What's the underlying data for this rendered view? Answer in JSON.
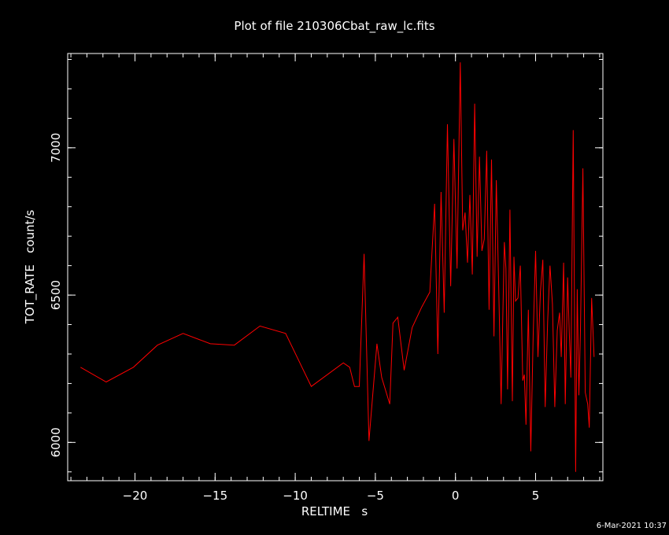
{
  "chart_data": {
    "type": "line",
    "title": "Plot of file 210306Cbat_raw_lc.fits",
    "xlabel": "RELTIME   s",
    "ylabel": "TOT_RATE   count/s",
    "xlim": [
      -24.2,
      9.2
    ],
    "ylim": [
      5870,
      7320
    ],
    "x_ticks": [
      {
        "value": -20,
        "label": "−20"
      },
      {
        "value": -15,
        "label": "−15"
      },
      {
        "value": -10,
        "label": "−10"
      },
      {
        "value": -5,
        "label": "−5"
      },
      {
        "value": 0,
        "label": "0"
      },
      {
        "value": 5,
        "label": "5"
      }
    ],
    "y_ticks": [
      {
        "value": 6000,
        "label": "6000"
      },
      {
        "value": 6500,
        "label": "6500"
      },
      {
        "value": 7000,
        "label": "7000"
      }
    ],
    "x_minor_step": 1,
    "y_minor_step": 100,
    "grid": false,
    "line_color": "#ff0000",
    "axis_color": "#ffffff",
    "series": [
      {
        "x": [
          -23.4,
          -21.8,
          -20.1,
          -18.6,
          -17.0,
          -15.3,
          -13.8,
          -12.2,
          -10.6,
          -9.0,
          -7.0,
          -6.6,
          -6.3,
          -6.0,
          -5.7,
          -5.4,
          -4.9,
          -4.6,
          -4.1,
          -3.9,
          -3.6,
          -3.2,
          -2.7,
          -2.1,
          -1.6,
          -1.3,
          -1.1,
          -0.9,
          -0.7,
          -0.5,
          -0.3,
          -0.1,
          0.1,
          0.3,
          0.45,
          0.6,
          0.75,
          0.9,
          1.05,
          1.2,
          1.35,
          1.5,
          1.65,
          1.8,
          1.95,
          2.1,
          2.25,
          2.4,
          2.55,
          2.7,
          2.85,
          2.95,
          3.05,
          3.15,
          3.25,
          3.4,
          3.55,
          3.65,
          3.75,
          3.9,
          4.05,
          4.2,
          4.3,
          4.4,
          4.55,
          4.7,
          4.85,
          5.0,
          5.15,
          5.3,
          5.45,
          5.6,
          5.75,
          5.9,
          6.05,
          6.2,
          6.35,
          6.5,
          6.6,
          6.75,
          6.85,
          7.0,
          7.1,
          7.2,
          7.35,
          7.5,
          7.6,
          7.7,
          7.8,
          7.95,
          8.1,
          8.25,
          8.35,
          8.5,
          8.65
        ],
        "y": [
          6255,
          6205,
          6255,
          6330,
          6370,
          6335,
          6330,
          6395,
          6370,
          6190,
          6270,
          6255,
          6190,
          6190,
          6640,
          6005,
          6335,
          6220,
          6130,
          6405,
          6425,
          6245,
          6390,
          6460,
          6510,
          6810,
          6300,
          6850,
          6440,
          7080,
          6530,
          7030,
          6590,
          7290,
          6720,
          6780,
          6610,
          6840,
          6570,
          7150,
          6630,
          6970,
          6650,
          6690,
          6990,
          6450,
          6960,
          6360,
          6890,
          6520,
          6130,
          6420,
          6680,
          6590,
          6180,
          6790,
          6140,
          6630,
          6480,
          6490,
          6600,
          6210,
          6230,
          6060,
          6450,
          5970,
          6360,
          6650,
          6290,
          6510,
          6620,
          6120,
          6410,
          6600,
          6470,
          6120,
          6380,
          6440,
          6290,
          6610,
          6130,
          6560,
          6380,
          6220,
          7060,
          5900,
          6520,
          6160,
          6380,
          6930,
          6170,
          6130,
          6050,
          6490,
          6290
        ]
      }
    ]
  },
  "footer": {
    "timestamp": "6-Mar-2021 10:37"
  }
}
